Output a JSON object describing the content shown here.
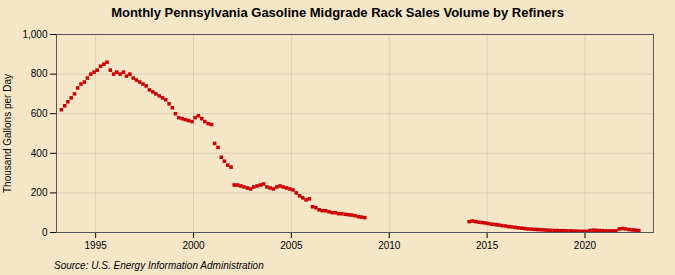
{
  "chart_data": {
    "type": "scatter",
    "title": "Monthly Pennsylvania Gasoline Midgrade Rack Sales Volume by Refiners",
    "ylabel": "Thousand Gallons per Day",
    "source": "Source: U.S. Energy Information Administration",
    "background_color": "#f5e6c8",
    "color": "#cc0000",
    "marker": "square",
    "grid": true,
    "xlim": [
      1993.0,
      2023.5
    ],
    "xticks": [
      1995,
      2000,
      2005,
      2010,
      2015,
      2020
    ],
    "ylim": [
      0,
      1000
    ],
    "yticks": [
      0,
      200,
      400,
      600,
      800,
      {
        "value": 1000,
        "label": "1,000"
      }
    ],
    "x": [
      1993.25,
      1993.42,
      1993.58,
      1993.75,
      1993.92,
      1994.08,
      1994.25,
      1994.42,
      1994.58,
      1994.75,
      1994.92,
      1995.08,
      1995.25,
      1995.42,
      1995.58,
      1995.75,
      1995.92,
      1996.08,
      1996.25,
      1996.42,
      1996.58,
      1996.75,
      1996.92,
      1997.08,
      1997.25,
      1997.42,
      1997.58,
      1997.75,
      1997.92,
      1998.08,
      1998.25,
      1998.42,
      1998.58,
      1998.75,
      1998.92,
      1999.08,
      1999.25,
      1999.42,
      1999.58,
      1999.75,
      1999.92,
      2000.08,
      2000.25,
      2000.42,
      2000.58,
      2000.75,
      2000.92,
      2001.08,
      2001.25,
      2001.42,
      2001.58,
      2001.75,
      2001.92,
      2002.08,
      2002.25,
      2002.42,
      2002.58,
      2002.75,
      2002.92,
      2003.08,
      2003.25,
      2003.42,
      2003.58,
      2003.75,
      2003.92,
      2004.08,
      2004.25,
      2004.42,
      2004.58,
      2004.75,
      2004.92,
      2005.08,
      2005.25,
      2005.42,
      2005.58,
      2005.75,
      2005.92,
      2006.08,
      2006.25,
      2006.42,
      2006.58,
      2006.75,
      2006.92,
      2007.08,
      2007.25,
      2007.42,
      2007.58,
      2007.75,
      2007.92,
      2008.08,
      2008.25,
      2008.42,
      2008.58,
      2008.75,
      2014.08,
      2014.25,
      2014.42,
      2014.58,
      2014.75,
      2014.92,
      2015.08,
      2015.25,
      2015.42,
      2015.58,
      2015.75,
      2015.92,
      2016.08,
      2016.25,
      2016.42,
      2016.58,
      2016.75,
      2016.92,
      2017.08,
      2017.25,
      2017.42,
      2017.58,
      2017.75,
      2017.92,
      2018.08,
      2018.25,
      2018.42,
      2018.58,
      2018.75,
      2018.92,
      2019.08,
      2019.25,
      2019.42,
      2019.58,
      2019.75,
      2019.92,
      2020.08,
      2020.25,
      2020.42,
      2020.58,
      2020.75,
      2020.92,
      2021.08,
      2021.25,
      2021.42,
      2021.58,
      2021.75,
      2021.92,
      2022.08,
      2022.25,
      2022.42,
      2022.58,
      2022.75
    ],
    "values": [
      620,
      640,
      660,
      680,
      700,
      730,
      750,
      760,
      780,
      800,
      810,
      820,
      840,
      850,
      860,
      820,
      800,
      810,
      800,
      810,
      790,
      800,
      780,
      770,
      760,
      750,
      740,
      720,
      710,
      700,
      690,
      680,
      670,
      650,
      630,
      600,
      580,
      575,
      570,
      565,
      560,
      580,
      590,
      575,
      560,
      550,
      545,
      450,
      430,
      380,
      360,
      340,
      330,
      240,
      240,
      235,
      230,
      225,
      220,
      230,
      235,
      240,
      245,
      230,
      225,
      220,
      230,
      235,
      230,
      225,
      220,
      215,
      200,
      185,
      175,
      165,
      170,
      130,
      125,
      115,
      110,
      110,
      105,
      100,
      100,
      95,
      95,
      92,
      90,
      88,
      85,
      80,
      78,
      75,
      55,
      58,
      55,
      52,
      50,
      48,
      45,
      42,
      40,
      38,
      35,
      33,
      30,
      28,
      26,
      24,
      22,
      20,
      18,
      17,
      16,
      15,
      14,
      13,
      12,
      11,
      10,
      10,
      9,
      9,
      8,
      8,
      7,
      7,
      6,
      6,
      5,
      10,
      12,
      11,
      10,
      9,
      8,
      8,
      8,
      8,
      18,
      20,
      18,
      15,
      13,
      12,
      10
    ]
  }
}
